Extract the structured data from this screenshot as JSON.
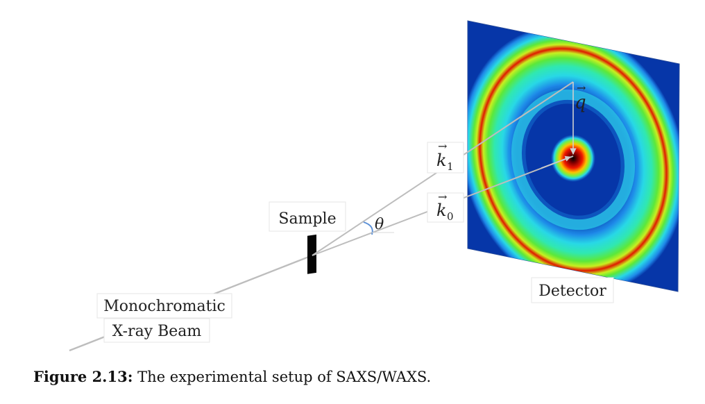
{
  "labels": {
    "sample": "Sample",
    "detector": "Detector",
    "beam_line1": "Monochromatic",
    "beam_line2": "X-ray Beam",
    "theta": "θ",
    "k1_base": "k",
    "k1_sub": "1",
    "k0_base": "k",
    "k0_sub": "0",
    "q": "q",
    "vector_arrow": "→"
  },
  "caption": {
    "label": "Figure 2.13:",
    "text": "The experimental setup of SAXS/WAXS."
  },
  "colors": {
    "detector_background": "#0636a8",
    "beam": "#bdbdbd",
    "sample": "#050505",
    "theta_arc": "#5a8fd6",
    "ring_red": "#e01a00",
    "ring_green": "#44e03a",
    "ring_cyan": "#28d8e6"
  }
}
